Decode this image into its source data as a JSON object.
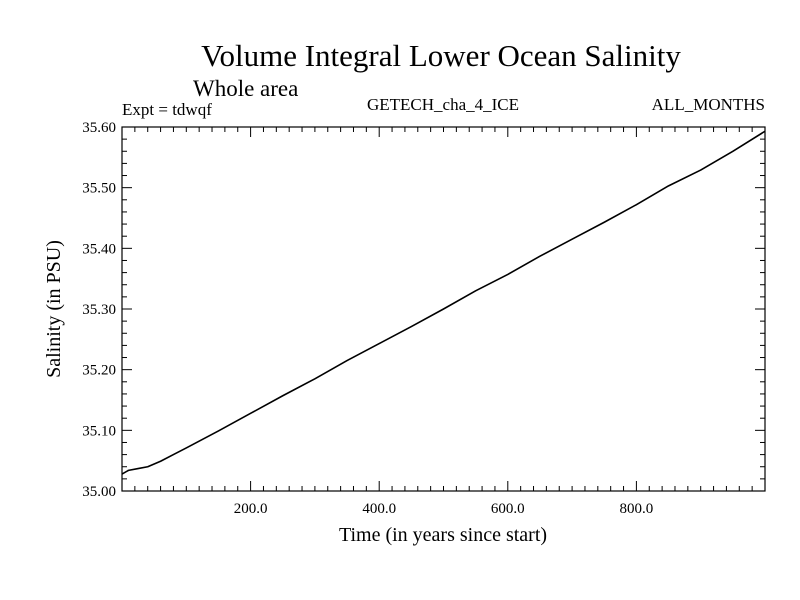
{
  "chart_data": {
    "type": "line",
    "title": "Volume Integral Lower Ocean Salinity",
    "subtitle": "Whole area",
    "header_left": "Expt = tdwqf",
    "header_center": "GETECH_cha_4_ICE",
    "header_right": "ALL_MONTHS",
    "xlabel": "Time (in years since start)",
    "ylabel": "Salinity (in PSU)",
    "xlim": [
      0,
      1000
    ],
    "ylim": [
      35.0,
      35.6
    ],
    "x_ticks": [
      200,
      400,
      600,
      800
    ],
    "x_tick_labels": [
      "200.0",
      "400.0",
      "600.0",
      "800.0"
    ],
    "y_ticks": [
      35.0,
      35.1,
      35.2,
      35.3,
      35.4,
      35.5,
      35.6
    ],
    "y_tick_labels": [
      "35.00",
      "35.10",
      "35.20",
      "35.30",
      "35.40",
      "35.50",
      "35.60"
    ],
    "grid": false,
    "line_color": "#000000",
    "series": [
      {
        "x": [
          0,
          10,
          25,
          40,
          60,
          80,
          100,
          150,
          200,
          250,
          300,
          350,
          400,
          450,
          500,
          550,
          600,
          650,
          700,
          750,
          800,
          850,
          900,
          950,
          1000
        ],
        "y": [
          35.028,
          35.034,
          35.037,
          35.04,
          35.049,
          35.06,
          35.071,
          35.099,
          35.128,
          35.157,
          35.185,
          35.215,
          35.243,
          35.271,
          35.3,
          35.33,
          35.357,
          35.387,
          35.415,
          35.443,
          35.472,
          35.503,
          35.529,
          35.56,
          35.593
        ]
      }
    ]
  }
}
